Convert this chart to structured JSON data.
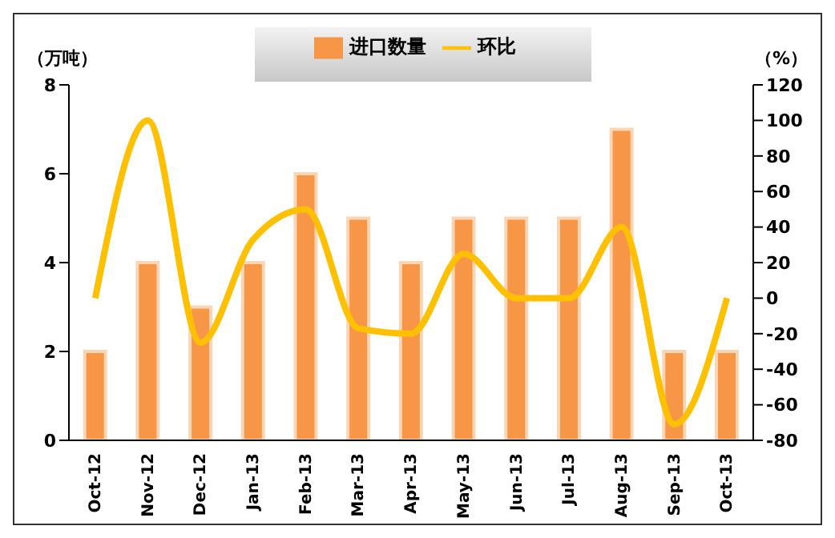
{
  "chart_data": {
    "type": "bar",
    "ylabel": "（万吨）",
    "y2label": "（%）",
    "categories": [
      "Oct-12",
      "Nov-12",
      "Dec-12",
      "Jan-13",
      "Feb-13",
      "Mar-13",
      "Apr-13",
      "May-13",
      "Jun-13",
      "Jul-13",
      "Aug-13",
      "Sep-13",
      "Oct-13"
    ],
    "series": [
      {
        "name": "进口数量",
        "color": "#f79646",
        "values": [
          2,
          4,
          3,
          4,
          6,
          5,
          4,
          5,
          5,
          5,
          7,
          2,
          2
        ]
      },
      {
        "name": "环比",
        "type": "line",
        "axis": "y2",
        "color": "#ffc000",
        "values": [
          0,
          100,
          -25,
          33,
          50,
          -17,
          -20,
          25,
          0,
          0,
          40,
          -71,
          0
        ]
      }
    ],
    "ylim": [
      0,
      8
    ],
    "yticks": [
      0,
      2,
      4,
      6,
      8
    ],
    "y2lim": [
      -80,
      120
    ],
    "y2ticks": [
      -80,
      -60,
      -40,
      -20,
      0,
      20,
      40,
      60,
      80,
      100,
      120
    ],
    "legend": "top",
    "grid": false,
    "marker": "none"
  }
}
